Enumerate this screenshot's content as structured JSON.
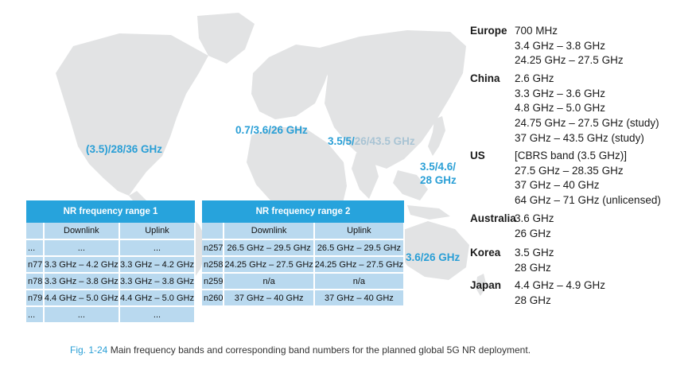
{
  "map_labels": {
    "americas": "(3.5)/28/36 GHz",
    "europe": "0.7/3.6/26 GHz",
    "asia_main": "3.5/5/",
    "asia_dim": "26/43.5 GHz",
    "east_asia_line1": "3.5/4.6/",
    "east_asia_line2": "28 GHz",
    "oceania": "3.6/26 GHz"
  },
  "regions": [
    {
      "name": "Europe",
      "bands": [
        "700 MHz",
        "3.4 GHz – 3.8 GHz",
        "24.25 GHz – 27.5 GHz"
      ]
    },
    {
      "name": "China",
      "bands": [
        "2.6 GHz",
        "3.3 GHz – 3.6 GHz",
        "4.8 GHz – 5.0 GHz",
        "24.75 GHz – 27.5 GHz (study)",
        "37 GHz – 43.5 GHz (study)"
      ]
    },
    {
      "name": "US",
      "bands": [
        "[CBRS band (3.5 GHz)]",
        "27.5 GHz – 28.35 GHz",
        "37 GHz – 40 GHz",
        "64 GHz – 71 GHz (unlicensed)"
      ]
    },
    {
      "name": "Australia",
      "bands": [
        "3.6 GHz",
        "26 GHz"
      ]
    },
    {
      "name": "Korea",
      "bands": [
        "3.5 GHz",
        "28 GHz"
      ]
    },
    {
      "name": "Japan",
      "bands": [
        "4.4 GHz – 4.9 GHz",
        "28 GHz"
      ]
    }
  ],
  "fr1": {
    "title": "NR frequency range 1",
    "col_downlink": "Downlink",
    "col_uplink": "Uplink",
    "rows": [
      {
        "band": "...",
        "dl": "...",
        "ul": "..."
      },
      {
        "band": "n77",
        "dl": "3.3 GHz – 4.2 GHz",
        "ul": "3.3 GHz – 4.2 GHz"
      },
      {
        "band": "n78",
        "dl": "3.3 GHz – 3.8 GHz",
        "ul": "3.3 GHz – 3.8 GHz"
      },
      {
        "band": "n79",
        "dl": "4.4 GHz – 5.0 GHz",
        "ul": "4.4 GHz – 5.0 GHz"
      },
      {
        "band": "...",
        "dl": "...",
        "ul": "..."
      }
    ]
  },
  "fr2": {
    "title": "NR frequency range 2",
    "col_downlink": "Downlink",
    "col_uplink": "Uplink",
    "rows": [
      {
        "band": "n257",
        "dl": "26.5 GHz – 29.5 GHz",
        "ul": "26.5 GHz – 29.5 GHz"
      },
      {
        "band": "n258",
        "dl": "24.25 GHz – 27.5 GHz",
        "ul": "24.25 GHz – 27.5 GHz"
      },
      {
        "band": "n259",
        "dl": "n/a",
        "ul": "n/a"
      },
      {
        "band": "n260",
        "dl": "37 GHz – 40 GHz",
        "ul": "37 GHz – 40 GHz"
      }
    ]
  },
  "caption": {
    "figure_number": "Fig. 1-24",
    "text": " Main frequency bands and corresponding band numbers for the planned global 5G NR deployment."
  },
  "colors": {
    "label_blue": "#2a9fd6",
    "table_header": "#27a3dc",
    "table_cell": "#b9d9ef",
    "map_land": "#e2e3e4"
  }
}
